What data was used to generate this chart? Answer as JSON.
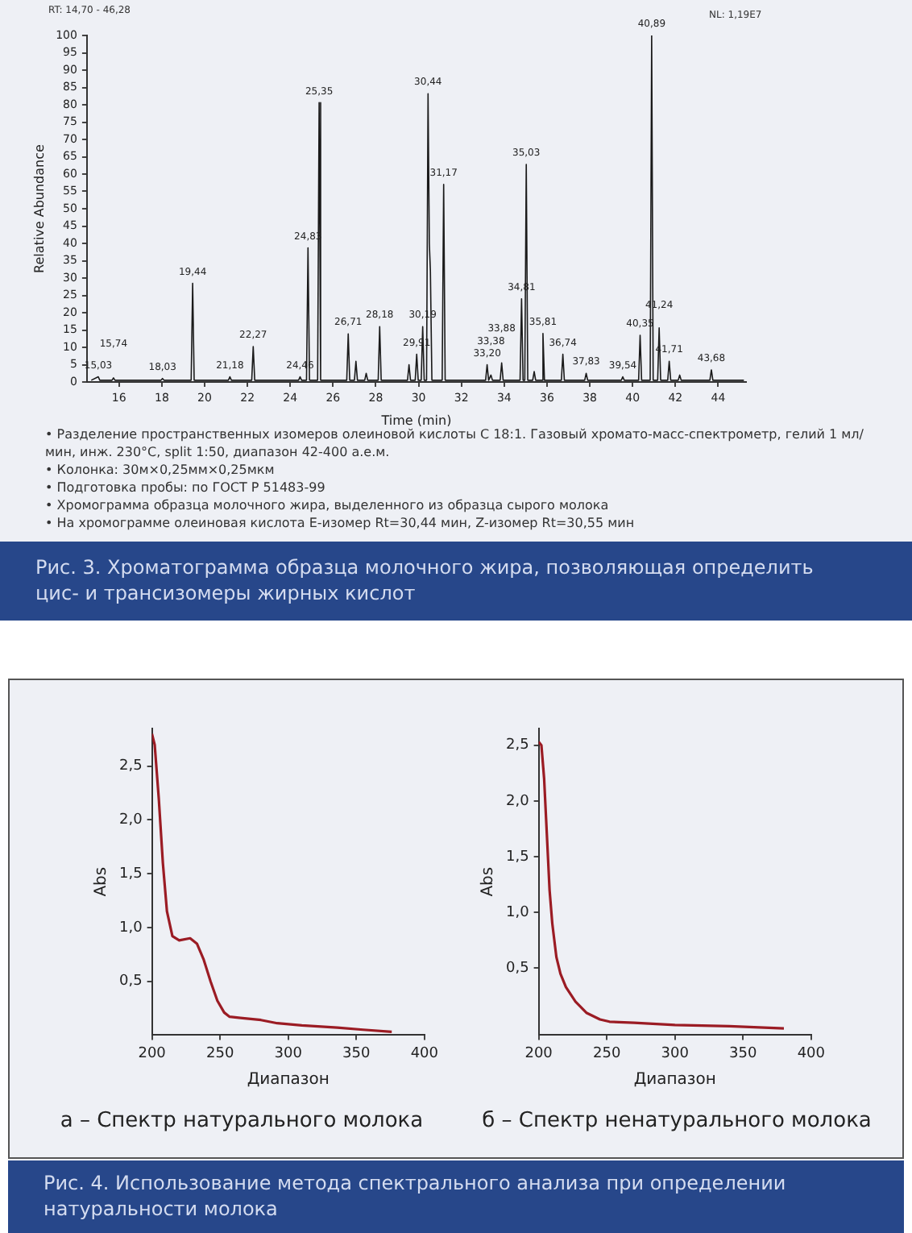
{
  "chart_data": [
    {
      "type": "line",
      "title": "Рис. 3. Хроматограмма образца молочного жира, позволяющая определить цис- и трансизомеры жирных кислот",
      "xlabel": "Time (min)",
      "ylabel": "Relative Abundance",
      "x": [
        14.7,
        15.03,
        15.1,
        15.67,
        15.74,
        15.81,
        17.96,
        18.03,
        18.1,
        19.37,
        19.44,
        19.51,
        21.11,
        21.18,
        21.25,
        22.2,
        22.27,
        22.34,
        24.39,
        24.46,
        24.53,
        24.76,
        24.83,
        24.9,
        25.28,
        25.35,
        25.42,
        26.64,
        26.71,
        26.78,
        27.0,
        27.07,
        27.14,
        27.48,
        27.55,
        27.62,
        28.11,
        28.18,
        28.25,
        29.48,
        29.55,
        29.62,
        29.84,
        29.91,
        29.98,
        30.12,
        30.19,
        30.26,
        30.37,
        30.44,
        30.5,
        30.55,
        30.62,
        31.1,
        31.17,
        31.24,
        33.13,
        33.2,
        33.27,
        33.31,
        33.38,
        33.45,
        33.81,
        33.88,
        33.95,
        34.74,
        34.81,
        34.88,
        34.96,
        35.03,
        35.1,
        35.33,
        35.4,
        35.47,
        35.74,
        35.81,
        35.88,
        36.67,
        36.74,
        36.81,
        37.76,
        37.83,
        37.9,
        39.47,
        39.54,
        39.61,
        40.28,
        40.35,
        40.42,
        40.82,
        40.89,
        40.96,
        41.17,
        41.24,
        41.31,
        41.64,
        41.71,
        41.78,
        42.13,
        42.2,
        42.27,
        43.61,
        43.68,
        43.75,
        45.2
      ],
      "series": [
        {
          "color": "#1a1a1a",
          "values": [
            0.5,
            1.5,
            0.5,
            0.5,
            1.2,
            0.5,
            0.5,
            1,
            0.5,
            0.5,
            28.5,
            0.5,
            0.5,
            1.5,
            0.5,
            0.5,
            10.2,
            0.5,
            0.5,
            1.5,
            0.5,
            0.5,
            38.7,
            0.5,
            0.5,
            80.6,
            0.5,
            0.5,
            13.9,
            0.5,
            0.5,
            6,
            0.5,
            0.5,
            2.5,
            0.5,
            0.5,
            16,
            0.5,
            0.5,
            5,
            0.5,
            0.5,
            8,
            0.5,
            0.5,
            16,
            0.5,
            0.5,
            83.2,
            40,
            32,
            0.5,
            0.5,
            57,
            0.5,
            0.5,
            5,
            0.5,
            0.5,
            2,
            0.5,
            0.5,
            5.5,
            0.5,
            0.5,
            24,
            0.5,
            0.5,
            62.8,
            0.5,
            0.5,
            3,
            0.5,
            0.5,
            14,
            0.5,
            0.5,
            8,
            0.5,
            0.5,
            2.5,
            0.5,
            0.5,
            1.5,
            0.5,
            0.5,
            13.5,
            0.5,
            0.5,
            100,
            0.5,
            0.5,
            15.6,
            0.5,
            0.5,
            6,
            0.5,
            0.5,
            2,
            0.5,
            0.5,
            3.5,
            0.5,
            0.5
          ]
        }
      ],
      "xlim": [
        14.5,
        45.3
      ],
      "xticks": [
        16,
        18,
        20,
        22,
        24,
        26,
        28,
        30,
        32,
        34,
        36,
        38,
        40,
        42,
        44
      ],
      "ylim": [
        0,
        100
      ],
      "yticks": [
        0,
        5,
        10,
        15,
        20,
        25,
        30,
        35,
        40,
        45,
        50,
        55,
        60,
        65,
        70,
        75,
        80,
        85,
        90,
        95,
        100
      ],
      "annotations": [
        "RT: 14,70 - 46,28",
        "NL: 1,19E7",
        "• Разделение пространственных изомеров олеиновой кислоты С 18:1. Газовый хромато-масс-спектрометр, гелий 1 мл/мин, инж. 230°С, split 1:50, диапазон 42-400 а.е.м.",
        "• Колонка: 30м×0,25мм×0,25мкм",
        "• Подготовка пробы: по ГОСТ Р 51483-99",
        "• Хромограмма образца молочного жира, выделенного из образца сырого молока",
        "• На хромограмме олеиновая кислота Е-изомер Rt=30,44 мин, Z-изомер Rt=30,55 мин",
        {
          "text": "15,03",
          "x": 15.03,
          "y": 1.5
        },
        {
          "text": "15,74",
          "x": 15.74,
          "y": 1.2
        },
        {
          "text": "18,03",
          "x": 18.03,
          "y": 1
        },
        {
          "text": "19,44",
          "x": 19.44,
          "y": 28.5
        },
        {
          "text": "21,18",
          "x": 21.18,
          "y": 1.5
        },
        {
          "text": "22,27",
          "x": 22.27,
          "y": 10.2
        },
        {
          "text": "24,46",
          "x": 24.46,
          "y": 1.5
        },
        {
          "text": "24,83",
          "x": 24.83,
          "y": 38.7
        },
        {
          "text": "25,35",
          "x": 25.35,
          "y": 80.6
        },
        {
          "text": "26,71",
          "x": 26.71,
          "y": 13.9
        },
        {
          "text": "28,18",
          "x": 28.18,
          "y": 16
        },
        {
          "text": "29,91",
          "x": 29.91,
          "y": 8
        },
        {
          "text": "30,19",
          "x": 30.19,
          "y": 16
        },
        {
          "text": "30,44",
          "x": 30.44,
          "y": 83.2
        },
        {
          "text": "31,17",
          "x": 31.17,
          "y": 57
        },
        {
          "text": "33,20",
          "x": 33.2,
          "y": 5
        },
        {
          "text": "33,38",
          "x": 33.38,
          "y": 2
        },
        {
          "text": "33,88",
          "x": 33.88,
          "y": 5.5
        },
        {
          "text": "34,81",
          "x": 34.81,
          "y": 24
        },
        {
          "text": "35,03",
          "x": 35.03,
          "y": 62.8
        },
        {
          "text": "35,81",
          "x": 35.81,
          "y": 14
        },
        {
          "text": "36,74",
          "x": 36.74,
          "y": 8
        },
        {
          "text": "37,83",
          "x": 37.83,
          "y": 2.5
        },
        {
          "text": "39,54",
          "x": 39.54,
          "y": 1.5
        },
        {
          "text": "40,35",
          "x": 40.35,
          "y": 13.5
        },
        {
          "text": "40,89",
          "x": 40.89,
          "y": 100
        },
        {
          "text": "41,24",
          "x": 41.24,
          "y": 15.6
        },
        {
          "text": "41,71",
          "x": 41.71,
          "y": 6
        },
        {
          "text": "43,68",
          "x": 43.68,
          "y": 3.5
        }
      ]
    },
    {
      "type": "line",
      "title": "а – Спектр натурального молока",
      "xlabel": "Диапазон",
      "ylabel": "Abs",
      "x": [
        200,
        202,
        205,
        208,
        211,
        215,
        220,
        228,
        233,
        238,
        243,
        248,
        253,
        257,
        265,
        280,
        292,
        310,
        336,
        355,
        376
      ],
      "series": [
        {
          "color": "#9b1c24",
          "values": [
            2.8,
            2.7,
            2.2,
            1.6,
            1.15,
            0.92,
            0.88,
            0.9,
            0.85,
            0.7,
            0.5,
            0.32,
            0.21,
            0.17,
            0.16,
            0.14,
            0.11,
            0.09,
            0.07,
            0.05,
            0.03
          ]
        }
      ],
      "xlim": [
        200,
        400
      ],
      "xticks": [
        200,
        250,
        300,
        350,
        400
      ],
      "ylim": [
        0,
        2.85
      ],
      "yticks": [
        {
          "value": 0.5,
          "label": "0,5"
        },
        {
          "value": 1,
          "label": "1,0"
        },
        {
          "value": 1.5,
          "label": "1,5"
        },
        {
          "value": 2,
          "label": "2,0"
        },
        {
          "value": 2.5,
          "label": "2,5"
        }
      ]
    },
    {
      "type": "line",
      "title": "б – Спектр ненатурального молока",
      "xlabel": "Диапазон",
      "ylabel": "Abs",
      "x": [
        200,
        202,
        204,
        206,
        208,
        210,
        213,
        216,
        220,
        227,
        235,
        245,
        252,
        270,
        300,
        340,
        380
      ],
      "series": [
        {
          "color": "#9b1c24",
          "values": [
            2.53,
            2.5,
            2.2,
            1.7,
            1.2,
            0.9,
            0.6,
            0.45,
            0.33,
            0.2,
            0.1,
            0.04,
            0.02,
            0.01,
            -0.01,
            -0.02,
            -0.04
          ]
        }
      ],
      "xlim": [
        200,
        400
      ],
      "xticks": [
        200,
        250,
        300,
        350,
        400
      ],
      "ylim": [
        -0.1,
        2.65
      ],
      "yticks": [
        {
          "value": 0.5,
          "label": "0,5"
        },
        {
          "value": 1,
          "label": "1,0"
        },
        {
          "value": 1.5,
          "label": "1,5"
        },
        {
          "value": 2,
          "label": "2,0"
        },
        {
          "value": 2.5,
          "label": "2,5"
        }
      ],
      "annotations": [
        "Рис. 4. Использование метода спектрального анализа при определении натуральности молока"
      ]
    }
  ]
}
